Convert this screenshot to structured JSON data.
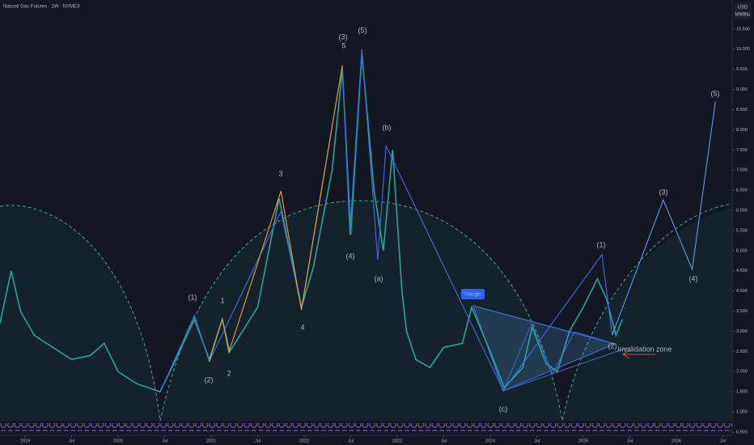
{
  "chart_data": {
    "type": "line",
    "title": "Natural Gas Futures · 1W · NYMEX",
    "currency": "USD",
    "unit": "MMBtu",
    "xlim": [
      2018.73,
      2026.6
    ],
    "ylim": [
      0.42,
      11.22
    ],
    "xticks": [
      2019,
      {
        "value": 2019.5,
        "label": "Jul"
      },
      2020,
      {
        "value": 2020.5,
        "label": "Jul"
      },
      2021,
      {
        "value": 2021.5,
        "label": "Jul"
      },
      2022,
      {
        "value": 2022.5,
        "label": "Jul"
      },
      2023,
      {
        "value": 2023.5,
        "label": "Jul"
      },
      2024,
      {
        "value": 2024.5,
        "label": "Jul"
      },
      2025,
      {
        "value": 2025.5,
        "label": "Jul"
      },
      2026,
      {
        "value": 2026.5,
        "label": "Jul"
      }
    ],
    "yticks": [
      {
        "value": 0.5,
        "label": "0.500"
      },
      {
        "value": 1,
        "label": "1.000"
      },
      {
        "value": 1.5,
        "label": "1.500"
      },
      {
        "value": 2,
        "label": "2.000"
      },
      {
        "value": 2.5,
        "label": "2.500"
      },
      {
        "value": 3,
        "label": "3.000"
      },
      {
        "value": 3.5,
        "label": "3.500"
      },
      {
        "value": 4,
        "label": "4.000"
      },
      {
        "value": 4.5,
        "label": "4.500"
      },
      {
        "value": 5,
        "label": "5.000"
      },
      {
        "value": 5.5,
        "label": "5.500"
      },
      {
        "value": 6,
        "label": "6.000"
      },
      {
        "value": 6.5,
        "label": "6.500"
      },
      {
        "value": 7,
        "label": "7.000"
      },
      {
        "value": 7.5,
        "label": "7.500"
      },
      {
        "value": 8,
        "label": "8.000"
      },
      {
        "value": 8.5,
        "label": "8.500"
      },
      {
        "value": 9,
        "label": "9.000"
      },
      {
        "value": 9.5,
        "label": "9.500"
      },
      {
        "value": 10,
        "label": "10.000"
      },
      {
        "value": 10.5,
        "label": "10.500"
      }
    ],
    "series": [
      {
        "color": "#26a69a",
        "x": [
          2018.73,
          2018.85,
          2018.95,
          2019.1,
          2019.3,
          2019.5,
          2019.7,
          2019.85,
          2020.0,
          2020.2,
          2020.45,
          2020.6,
          2020.82,
          2020.98,
          2021.12,
          2021.2,
          2021.5,
          2021.73,
          2021.97,
          2022.1,
          2022.3,
          2022.41,
          2022.5,
          2022.62,
          2022.75,
          2022.85,
          2022.95,
          2023.05,
          2023.1,
          2023.2,
          2023.35,
          2023.5,
          2023.7,
          2023.8,
          2024.0,
          2024.15,
          2024.35,
          2024.45,
          2024.6,
          2024.72,
          2024.85,
          2025.0,
          2025.15,
          2025.25,
          2025.35,
          2025.42
        ],
        "values": [
          3.2,
          4.5,
          3.5,
          2.9,
          2.6,
          2.3,
          2.4,
          2.7,
          2.0,
          1.7,
          1.5,
          2.2,
          3.3,
          2.3,
          3.3,
          2.5,
          3.6,
          6.3,
          3.6,
          4.6,
          7.0,
          9.5,
          5.4,
          9.9,
          6.5,
          5.0,
          7.5,
          4.0,
          3.0,
          2.3,
          2.1,
          2.6,
          2.7,
          3.6,
          2.5,
          1.6,
          2.1,
          3.1,
          2.2,
          2.0,
          3.0,
          3.6,
          4.3,
          3.8,
          2.9,
          3.3
        ]
      },
      {
        "color": "#3d6fe0",
        "x": [
          2020.45,
          2020.82,
          2020.98,
          2021.75,
          2021.97,
          2022.41,
          2022.49,
          2022.62,
          2022.79,
          2022.88,
          2024.14,
          2025.2,
          2025.31
        ],
        "values": [
          1.48,
          3.4,
          2.25,
          5.97,
          3.57,
          9.6,
          5.4,
          10.0,
          4.78,
          7.6,
          1.53,
          4.9,
          2.91
        ]
      },
      {
        "color": "#f39c33",
        "x": [
          2020.98,
          2021.12,
          2021.19,
          2021.75,
          2021.97,
          2022.41
        ],
        "values": [
          2.25,
          3.3,
          2.48,
          6.48,
          3.53,
          9.6
        ]
      },
      {
        "color": "#5b9be8",
        "x": [
          2025.31,
          2025.86,
          2026.17,
          2026.42
        ],
        "values": [
          2.91,
          6.26,
          4.54,
          8.7
        ]
      }
    ],
    "annotations": [
      "(1)",
      "(2)",
      "1",
      "2",
      "3",
      "4",
      "5",
      "(3)",
      "(5)",
      "(4)",
      "(a)",
      "(b)",
      "(c)",
      "(1)",
      "(2)",
      "(3)",
      "(4)",
      "(5)",
      "Triangle",
      "invalidation zone"
    ]
  }
}
